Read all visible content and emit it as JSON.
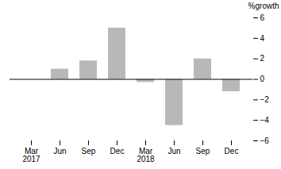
{
  "chart_data": {
    "type": "bar",
    "categories": [
      "Mar\n2017",
      "Jun",
      "Sep",
      "Dec",
      "Mar\n2018",
      "Jun",
      "Sep",
      "Dec"
    ],
    "values": [
      0.0,
      1.0,
      1.8,
      5.0,
      -0.3,
      -4.5,
      2.0,
      -1.2
    ],
    "color": "#b8b8b8",
    "ylabel": "%growth",
    "ylim": [
      -6,
      6
    ],
    "yticks": [
      -6,
      -4,
      -2,
      0,
      2,
      4,
      6
    ],
    "grid": false
  }
}
